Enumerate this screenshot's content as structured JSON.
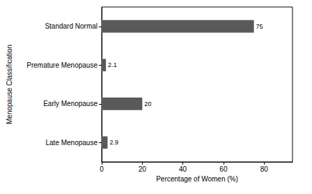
{
  "chart_data": {
    "type": "bar",
    "orientation": "horizontal",
    "categories": [
      "Standard Normal",
      "Premature Menopause",
      "Early Menopause",
      "Late Menopause"
    ],
    "values": [
      75,
      2.1,
      20,
      2.9
    ],
    "color": "#595959",
    "x_label": "Percentage of Women (%)",
    "y_label": "Menopause Classification",
    "xlim": [
      0,
      94
    ],
    "xticks": [
      0,
      20,
      40,
      60,
      80
    ],
    "grid": false,
    "data_labels": true
  }
}
